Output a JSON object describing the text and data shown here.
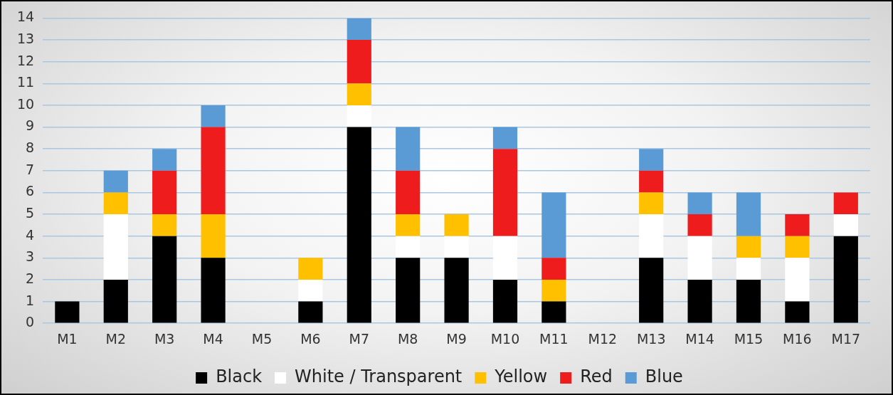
{
  "chart_data": {
    "type": "bar",
    "stacked": true,
    "categories": [
      "M1",
      "M2",
      "M3",
      "M4",
      "M5",
      "M6",
      "M7",
      "M8",
      "M9",
      "M10",
      "M11",
      "M12",
      "M13",
      "M14",
      "M15",
      "M16",
      "M17"
    ],
    "series": [
      {
        "name": "Black",
        "color": "#000000",
        "values": [
          1,
          2,
          4,
          3,
          0,
          1,
          9,
          3,
          3,
          2,
          1,
          0,
          3,
          2,
          2,
          1,
          4
        ]
      },
      {
        "name": "White / Transparent",
        "color": "#ffffff",
        "values": [
          0,
          3,
          0,
          0,
          0,
          1,
          1,
          1,
          1,
          2,
          0,
          0,
          2,
          2,
          1,
          2,
          1
        ]
      },
      {
        "name": "Yellow",
        "color": "#ffc000",
        "values": [
          0,
          1,
          1,
          2,
          0,
          1,
          1,
          1,
          1,
          0,
          1,
          0,
          1,
          0,
          1,
          1,
          0
        ]
      },
      {
        "name": "Red",
        "color": "#ee1c1c",
        "values": [
          0,
          0,
          2,
          4,
          0,
          0,
          2,
          2,
          0,
          4,
          1,
          0,
          1,
          1,
          0,
          1,
          1
        ]
      },
      {
        "name": "Blue",
        "color": "#5b9bd5",
        "values": [
          0,
          1,
          1,
          1,
          0,
          0,
          1,
          2,
          0,
          1,
          3,
          0,
          1,
          1,
          2,
          0,
          0
        ]
      }
    ],
    "ylim": [
      0,
      14
    ],
    "yticks": [
      0,
      1,
      2,
      3,
      4,
      5,
      6,
      7,
      8,
      9,
      10,
      11,
      12,
      13,
      14
    ],
    "grid": "y",
    "legend": "bottom"
  }
}
